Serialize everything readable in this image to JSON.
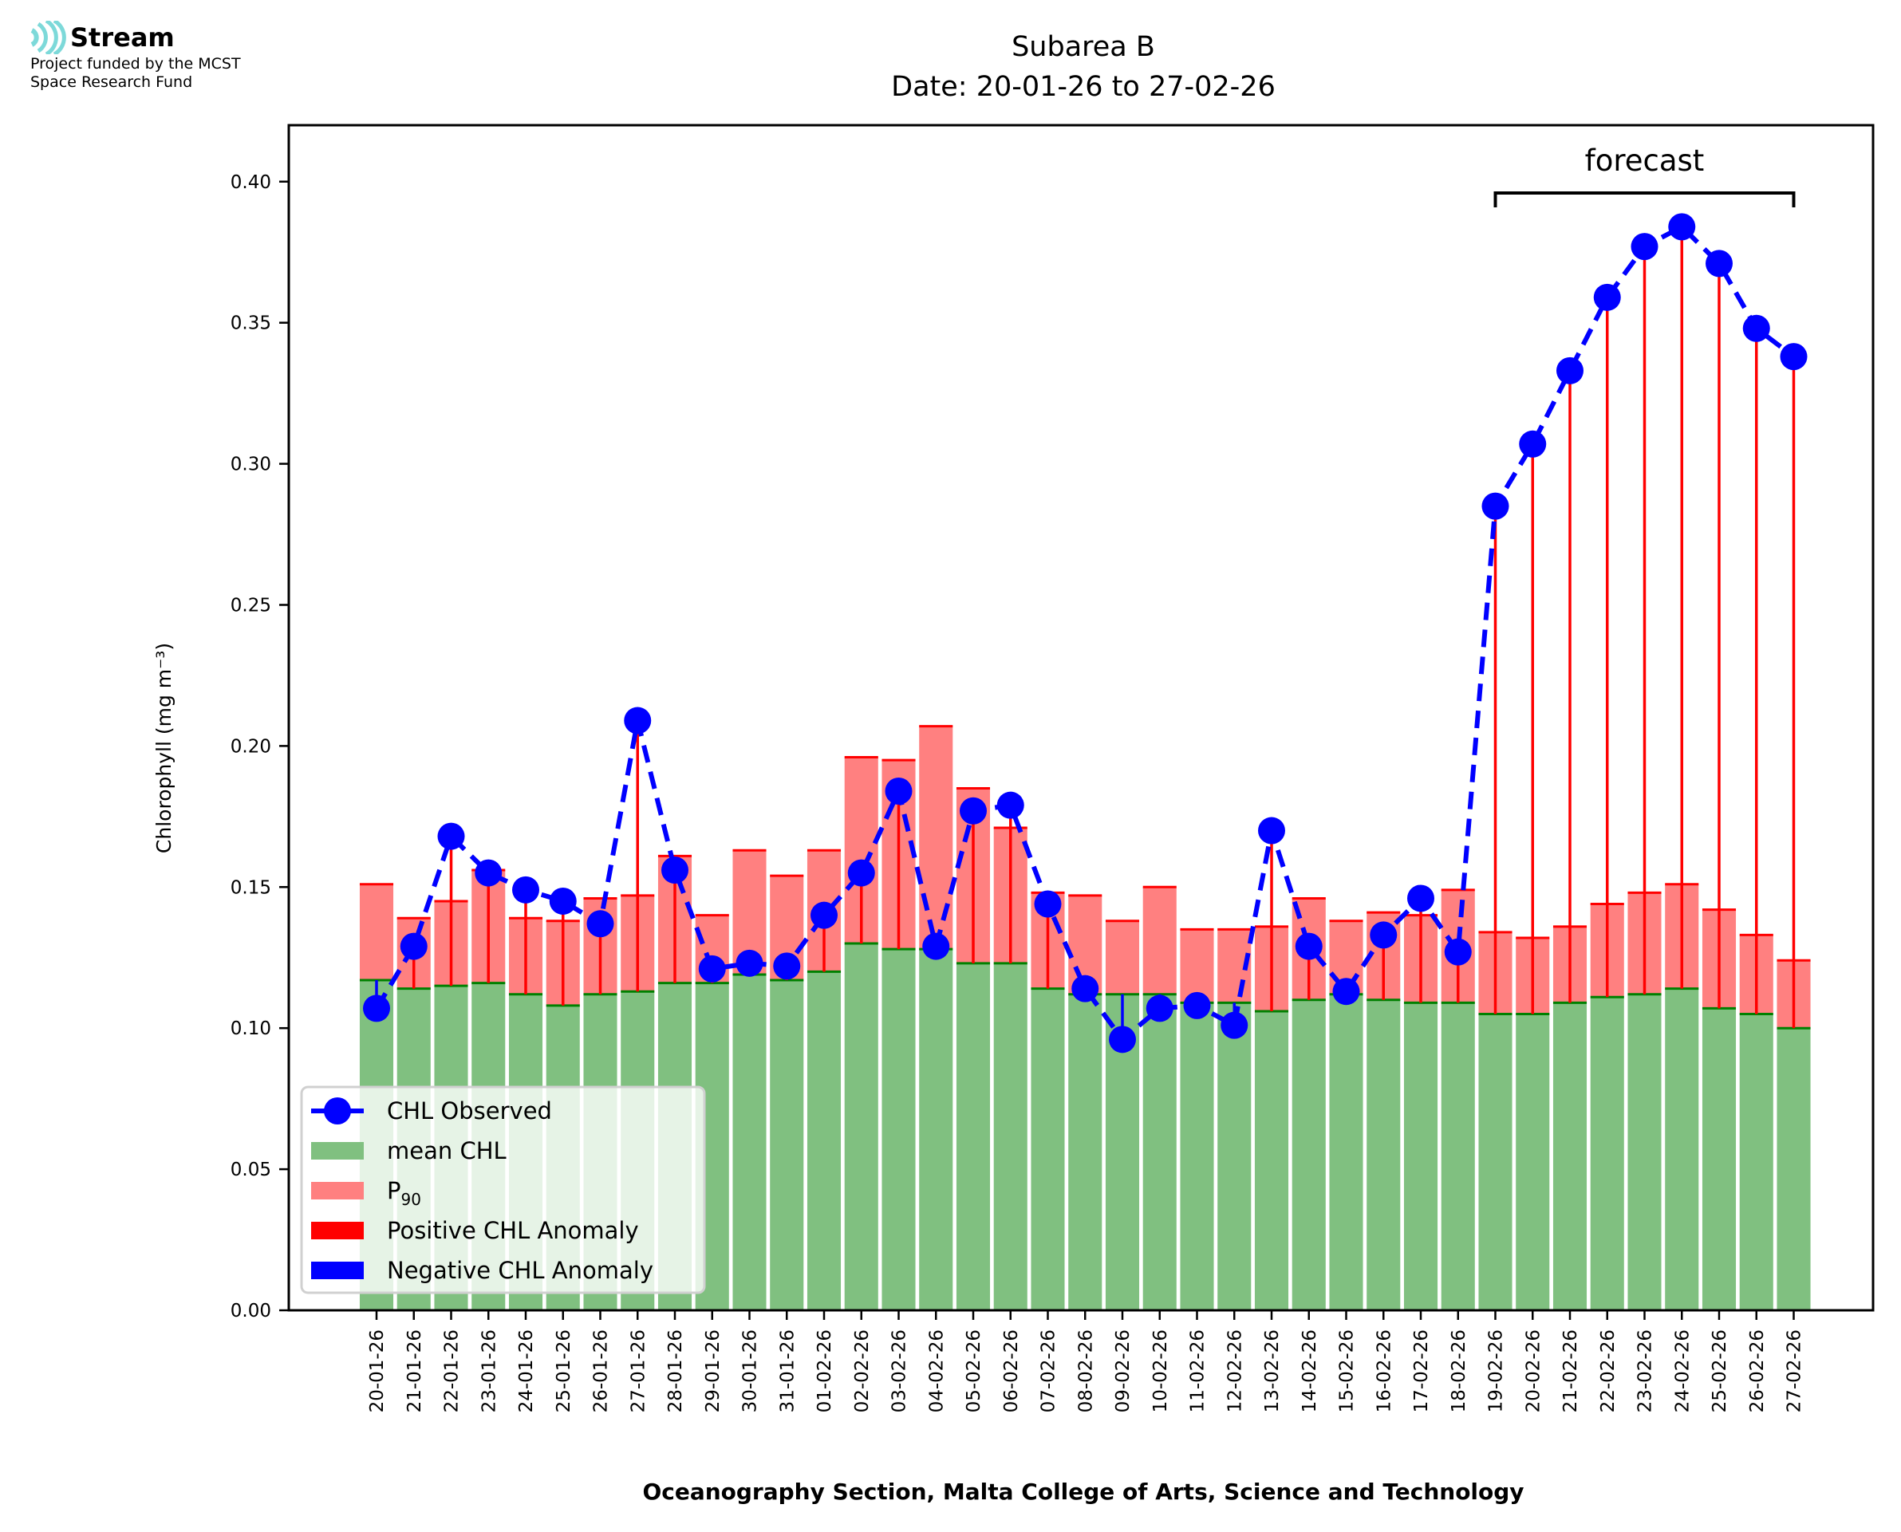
{
  "logo": {
    "name": "Stream",
    "funded_line1": "Project funded by the MCST",
    "funded_line2": "Space Research Fund"
  },
  "chart_data": {
    "type": "bar",
    "title": "Subarea B",
    "subtitle": "Date: 20-01-26 to 27-02-26",
    "xlabel": "Oceanography Section, Malta College of Arts, Science and Technology",
    "ylabel": "Chlorophyll (mg m⁻³)",
    "ylim": [
      0,
      0.42
    ],
    "yticks": [
      0.0,
      0.05,
      0.1,
      0.15,
      0.2,
      0.25,
      0.3,
      0.35,
      0.4
    ],
    "ytick_labels": [
      "0.00",
      "0.05",
      "0.10",
      "0.15",
      "0.20",
      "0.25",
      "0.30",
      "0.35",
      "0.40"
    ],
    "grid": false,
    "legend_position": "lower-left",
    "categories": [
      "20-01-26",
      "21-01-26",
      "22-01-26",
      "23-01-26",
      "24-01-26",
      "25-01-26",
      "26-01-26",
      "27-01-26",
      "28-01-26",
      "29-01-26",
      "30-01-26",
      "31-01-26",
      "01-02-26",
      "02-02-26",
      "03-02-26",
      "04-02-26",
      "05-02-26",
      "06-02-26",
      "07-02-26",
      "08-02-26",
      "09-02-26",
      "10-02-26",
      "11-02-26",
      "12-02-26",
      "13-02-26",
      "14-02-26",
      "15-02-26",
      "16-02-26",
      "17-02-26",
      "18-02-26",
      "19-02-26",
      "20-02-26",
      "21-02-26",
      "22-02-26",
      "23-02-26",
      "24-02-26",
      "25-02-26",
      "26-02-26",
      "27-02-26"
    ],
    "series": [
      {
        "name": "CHL Observed",
        "kind": "line-marker",
        "color": "#0000ff",
        "values": [
          0.107,
          0.129,
          0.168,
          0.155,
          0.149,
          0.145,
          0.137,
          0.209,
          0.156,
          0.121,
          0.123,
          0.122,
          0.14,
          0.155,
          0.184,
          0.129,
          0.177,
          0.179,
          0.144,
          0.114,
          0.096,
          0.107,
          0.108,
          0.101,
          0.17,
          0.129,
          0.113,
          0.133,
          0.146,
          0.127,
          0.285,
          0.307,
          0.333,
          0.359,
          0.377,
          0.384,
          0.371,
          0.348,
          0.338
        ]
      },
      {
        "name": "mean CHL",
        "kind": "bar",
        "color": "#80c080",
        "values": [
          0.117,
          0.114,
          0.115,
          0.116,
          0.112,
          0.108,
          0.112,
          0.113,
          0.116,
          0.116,
          0.119,
          0.117,
          0.12,
          0.13,
          0.128,
          0.128,
          0.123,
          0.123,
          0.114,
          0.112,
          0.112,
          0.112,
          0.109,
          0.109,
          0.106,
          0.11,
          0.112,
          0.11,
          0.109,
          0.109,
          0.105,
          0.105,
          0.109,
          0.111,
          0.112,
          0.114,
          0.107,
          0.105,
          0.1
        ]
      },
      {
        "name": "P90",
        "kind": "bar",
        "color": "#ff8080",
        "values": [
          0.151,
          0.139,
          0.145,
          0.156,
          0.139,
          0.138,
          0.146,
          0.147,
          0.161,
          0.14,
          0.163,
          0.154,
          0.163,
          0.196,
          0.195,
          0.207,
          0.185,
          0.171,
          0.148,
          0.147,
          0.138,
          0.15,
          0.135,
          0.135,
          0.136,
          0.146,
          0.138,
          0.141,
          0.14,
          0.149,
          0.134,
          0.132,
          0.136,
          0.144,
          0.148,
          0.151,
          0.142,
          0.133,
          0.124
        ]
      }
    ],
    "legend": [
      {
        "label": "CHL Observed",
        "icon": "line-marker-icon",
        "color": "#0000ff"
      },
      {
        "label": "mean CHL",
        "icon": "patch-icon",
        "color": "#80c080"
      },
      {
        "label": "P",
        "sub": "90",
        "icon": "patch-icon",
        "color": "#ff8080"
      },
      {
        "label": "Positive CHL Anomaly",
        "icon": "patch-icon",
        "color": "#ff0000"
      },
      {
        "label": "Negative CHL Anomaly",
        "icon": "patch-icon",
        "color": "#0000ff"
      }
    ],
    "annotation": {
      "text": "forecast",
      "start": "19-02-26",
      "end": "27-02-26"
    },
    "colors": {
      "positive_anomaly": "#ff0000",
      "negative_anomaly": "#0000ff",
      "mean_edge": "#008000"
    }
  }
}
